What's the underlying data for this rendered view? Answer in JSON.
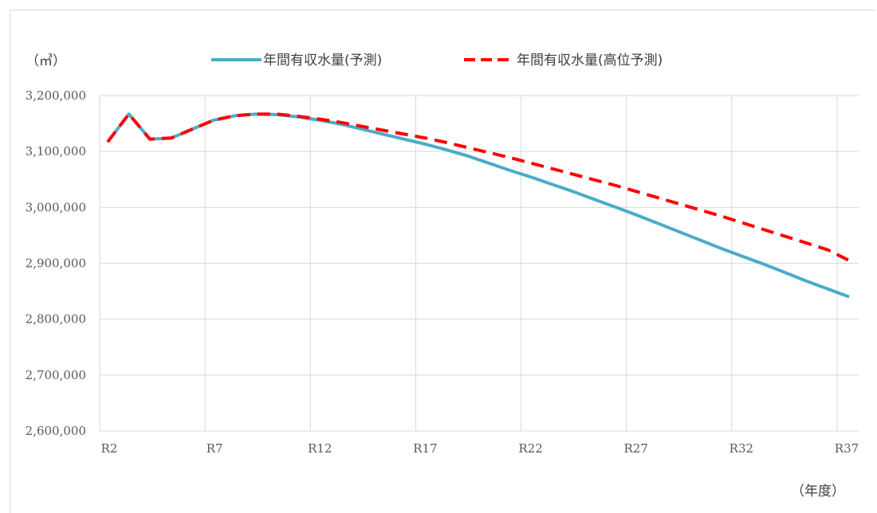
{
  "chart_data": {
    "type": "line",
    "ylabel": "（㎥）",
    "xlabel": "（年度）",
    "ylim": [
      2600000,
      3200000
    ],
    "yticks": [
      "3,200,000",
      "3,100,000",
      "3,000,000",
      "2,900,000",
      "2,800,000",
      "2,700,000",
      "2,600,000"
    ],
    "ytick_values": [
      3200000,
      3100000,
      3000000,
      2900000,
      2800000,
      2700000,
      2600000
    ],
    "categories": [
      "R2",
      "R3",
      "R4",
      "R5",
      "R6",
      "R7",
      "R8",
      "R9",
      "R10",
      "R11",
      "R12",
      "R13",
      "R14",
      "R15",
      "R16",
      "R17",
      "R18",
      "R19",
      "R20",
      "R21",
      "R22",
      "R23",
      "R24",
      "R25",
      "R26",
      "R27",
      "R28",
      "R29",
      "R30",
      "R31",
      "R32",
      "R33",
      "R34",
      "R35",
      "R36",
      "R37"
    ],
    "xtick_labels": [
      "R2",
      "R7",
      "R12",
      "R17",
      "R22",
      "R27",
      "R32",
      "R37"
    ],
    "grid": true,
    "legend_position": "top",
    "series": [
      {
        "name": "年間有収水量(予測)",
        "color": "#4bacc6",
        "style": "solid",
        "values": [
          3117000,
          3167000,
          3122000,
          3124000,
          3140000,
          3156000,
          3164000,
          3167000,
          3166000,
          3162000,
          3156000,
          3149000,
          3140000,
          3131000,
          3122000,
          3113000,
          3103000,
          3092000,
          3079000,
          3066000,
          3054000,
          3041000,
          3028000,
          3014000,
          3000000,
          2986000,
          2971000,
          2956000,
          2941000,
          2926000,
          2912000,
          2898000,
          2883000,
          2868000,
          2854000,
          2840000
        ]
      },
      {
        "name": "年間有収水量(高位予測)",
        "color": "#ff0000",
        "style": "dashed",
        "values": [
          3117000,
          3167000,
          3122000,
          3124000,
          3140000,
          3156000,
          3164000,
          3167000,
          3167000,
          3163000,
          3158000,
          3152000,
          3145000,
          3138000,
          3131000,
          3124000,
          3116000,
          3107000,
          3098000,
          3089000,
          3079000,
          3069000,
          3059000,
          3049000,
          3039000,
          3028000,
          3017000,
          3006000,
          2995000,
          2984000,
          2972000,
          2960000,
          2948000,
          2936000,
          2924000,
          2905000
        ]
      }
    ]
  }
}
